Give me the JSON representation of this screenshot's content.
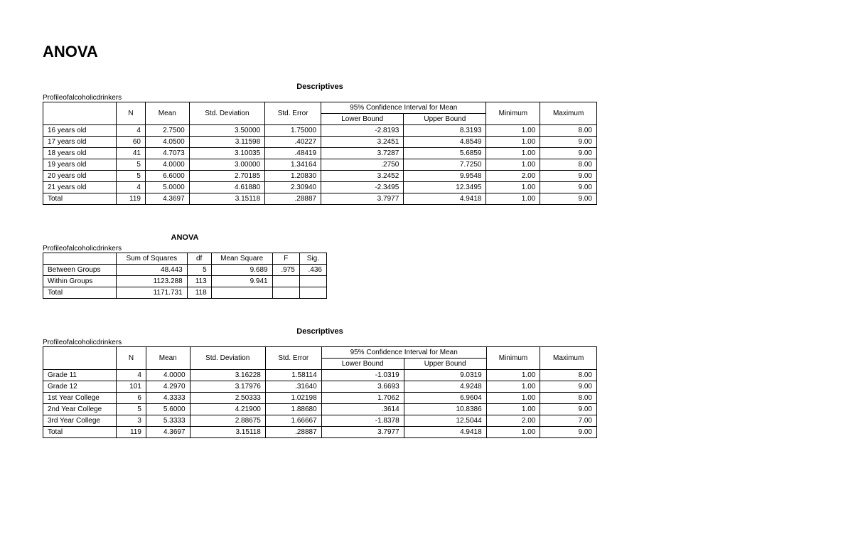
{
  "page": {
    "title": "ANOVA"
  },
  "descriptives1": {
    "title": "Descriptives",
    "subtitle": "Profileofalcoholicdrinkers",
    "ci_header": "95% Confidence Interval for Mean",
    "columns": [
      "N",
      "Mean",
      "Std. Deviation",
      "Std. Error",
      "Lower Bound",
      "Upper Bound",
      "Minimum",
      "Maximum"
    ],
    "rows": [
      {
        "label": "16 years old",
        "n": "4",
        "mean": "2.7500",
        "sd": "3.50000",
        "se": "1.75000",
        "lb": "-2.8193",
        "ub": "8.3193",
        "min": "1.00",
        "max": "8.00"
      },
      {
        "label": "17 years old",
        "n": "60",
        "mean": "4.0500",
        "sd": "3.11598",
        "se": ".40227",
        "lb": "3.2451",
        "ub": "4.8549",
        "min": "1.00",
        "max": "9.00"
      },
      {
        "label": "18 years old",
        "n": "41",
        "mean": "4.7073",
        "sd": "3.10035",
        "se": ".48419",
        "lb": "3.7287",
        "ub": "5.6859",
        "min": "1.00",
        "max": "9.00"
      },
      {
        "label": "19 years old",
        "n": "5",
        "mean": "4.0000",
        "sd": "3.00000",
        "se": "1.34164",
        "lb": ".2750",
        "ub": "7.7250",
        "min": "1.00",
        "max": "8.00"
      },
      {
        "label": "20 years old",
        "n": "5",
        "mean": "6.6000",
        "sd": "2.70185",
        "se": "1.20830",
        "lb": "3.2452",
        "ub": "9.9548",
        "min": "2.00",
        "max": "9.00"
      },
      {
        "label": "21 years old",
        "n": "4",
        "mean": "5.0000",
        "sd": "4.61880",
        "se": "2.30940",
        "lb": "-2.3495",
        "ub": "12.3495",
        "min": "1.00",
        "max": "9.00"
      },
      {
        "label": "Total",
        "n": "119",
        "mean": "4.3697",
        "sd": "3.15118",
        "se": ".28887",
        "lb": "3.7977",
        "ub": "4.9418",
        "min": "1.00",
        "max": "9.00"
      }
    ]
  },
  "anova1": {
    "title": "ANOVA",
    "subtitle": "Profileofalcoholicdrinkers",
    "columns": [
      "Sum of Squares",
      "df",
      "Mean Square",
      "F",
      "Sig."
    ],
    "rows": [
      {
        "label": "Between Groups",
        "ss": "48.443",
        "df": "5",
        "ms": "9.689",
        "f": ".975",
        "sig": ".436"
      },
      {
        "label": "Within Groups",
        "ss": "1123.288",
        "df": "113",
        "ms": "9.941",
        "f": "",
        "sig": ""
      },
      {
        "label": "Total",
        "ss": "1171.731",
        "df": "118",
        "ms": "",
        "f": "",
        "sig": ""
      }
    ]
  },
  "descriptives2": {
    "title": "Descriptives",
    "subtitle": "Profileofalcoholicdrinkers",
    "ci_header": "95% Confidence Interval for Mean",
    "columns": [
      "N",
      "Mean",
      "Std. Deviation",
      "Std. Error",
      "Lower Bound",
      "Upper Bound",
      "Minimum",
      "Maximum"
    ],
    "rows": [
      {
        "label": "Grade 11",
        "n": "4",
        "mean": "4.0000",
        "sd": "3.16228",
        "se": "1.58114",
        "lb": "-1.0319",
        "ub": "9.0319",
        "min": "1.00",
        "max": "8.00"
      },
      {
        "label": "Grade 12",
        "n": "101",
        "mean": "4.2970",
        "sd": "3.17976",
        "se": ".31640",
        "lb": "3.6693",
        "ub": "4.9248",
        "min": "1.00",
        "max": "9.00"
      },
      {
        "label": "1st Year College",
        "n": "6",
        "mean": "4.3333",
        "sd": "2.50333",
        "se": "1.02198",
        "lb": "1.7062",
        "ub": "6.9604",
        "min": "1.00",
        "max": "8.00"
      },
      {
        "label": "2nd Year College",
        "n": "5",
        "mean": "5.6000",
        "sd": "4.21900",
        "se": "1.88680",
        "lb": ".3614",
        "ub": "10.8386",
        "min": "1.00",
        "max": "9.00"
      },
      {
        "label": "3rd Year College",
        "n": "3",
        "mean": "5.3333",
        "sd": "2.88675",
        "se": "1.66667",
        "lb": "-1.8378",
        "ub": "12.5044",
        "min": "2.00",
        "max": "7.00"
      },
      {
        "label": "Total",
        "n": "119",
        "mean": "4.3697",
        "sd": "3.15118",
        "se": ".28887",
        "lb": "3.7977",
        "ub": "4.9418",
        "min": "1.00",
        "max": "9.00"
      }
    ]
  },
  "style": {
    "background_color": "#ffffff",
    "text_color": "#000000",
    "border_color": "#000000",
    "title_fontsize": 22,
    "table_fontsize": 10,
    "subtitle_fontsize": 10,
    "font_family": "Arial"
  }
}
